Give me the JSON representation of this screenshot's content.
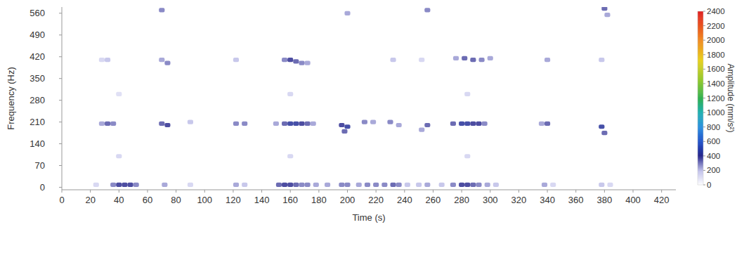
{
  "chart_data": {
    "type": "heatmap",
    "x_label": "Time (s)",
    "y_label": "Frequency (Hz)",
    "xlim": [
      0,
      430
    ],
    "ylim": [
      -8,
      580
    ],
    "xticks": [
      0,
      20,
      40,
      60,
      80,
      100,
      120,
      140,
      160,
      180,
      200,
      220,
      240,
      260,
      280,
      300,
      320,
      340,
      360,
      380,
      400,
      420
    ],
    "yticks": [
      0,
      70,
      140,
      210,
      280,
      350,
      420,
      490,
      560
    ],
    "grid": false,
    "x": [
      24,
      36,
      40,
      44,
      48,
      52,
      72,
      90,
      122,
      128,
      152,
      156,
      160,
      164,
      168,
      172,
      178,
      186,
      196,
      200,
      208,
      214,
      220,
      226,
      232,
      236,
      242,
      250,
      256,
      266,
      274,
      280,
      284,
      288,
      292,
      298,
      304,
      338,
      344,
      378,
      384,
      28,
      32,
      36,
      70,
      74,
      90,
      122,
      128,
      150,
      156,
      160,
      164,
      168,
      172,
      176,
      196,
      198,
      200,
      212,
      218,
      230,
      236,
      252,
      256,
      274,
      280,
      284,
      288,
      292,
      296,
      336,
      340,
      378,
      380,
      28,
      32,
      70,
      74,
      122,
      156,
      160,
      164,
      168,
      172,
      232,
      252,
      276,
      282,
      288,
      294,
      300,
      340,
      378,
      40,
      40,
      160,
      160,
      284,
      284,
      70,
      200,
      256,
      380,
      382
    ],
    "y": [
      8,
      8,
      8,
      8,
      8,
      8,
      8,
      8,
      8,
      8,
      8,
      8,
      8,
      8,
      8,
      8,
      8,
      8,
      8,
      8,
      8,
      8,
      8,
      8,
      8,
      8,
      8,
      8,
      8,
      8,
      8,
      8,
      8,
      8,
      8,
      8,
      8,
      8,
      8,
      8,
      8,
      205,
      205,
      205,
      205,
      200,
      210,
      205,
      205,
      205,
      205,
      205,
      205,
      205,
      205,
      205,
      200,
      180,
      195,
      210,
      210,
      210,
      200,
      185,
      200,
      205,
      205,
      205,
      205,
      205,
      205,
      205,
      205,
      195,
      175,
      410,
      410,
      410,
      400,
      410,
      410,
      410,
      405,
      400,
      400,
      410,
      410,
      415,
      415,
      410,
      410,
      415,
      410,
      410,
      100,
      300,
      100,
      300,
      100,
      300,
      570,
      560,
      570,
      575,
      555
    ],
    "values": [
      150,
      300,
      400,
      400,
      400,
      300,
      250,
      150,
      250,
      200,
      350,
      400,
      400,
      350,
      300,
      300,
      250,
      250,
      300,
      300,
      250,
      300,
      300,
      300,
      350,
      300,
      200,
      200,
      250,
      200,
      300,
      400,
      400,
      350,
      300,
      250,
      200,
      250,
      150,
      200,
      150,
      250,
      350,
      300,
      350,
      400,
      200,
      300,
      300,
      250,
      350,
      450,
      450,
      400,
      350,
      250,
      400,
      350,
      450,
      300,
      250,
      300,
      250,
      250,
      350,
      350,
      450,
      450,
      400,
      400,
      300,
      250,
      350,
      450,
      350,
      150,
      200,
      250,
      300,
      200,
      300,
      400,
      350,
      300,
      250,
      200,
      150,
      250,
      350,
      350,
      300,
      250,
      250,
      200,
      150,
      120,
      150,
      150,
      150,
      150,
      300,
      250,
      300,
      350,
      250
    ],
    "colorbar": {
      "label": "Amplitude (mm/s²)",
      "range": [
        0,
        2400
      ],
      "ticks": [
        0,
        200,
        400,
        600,
        800,
        1000,
        1200,
        1400,
        1600,
        1800,
        2000,
        2200,
        2400
      ]
    }
  }
}
